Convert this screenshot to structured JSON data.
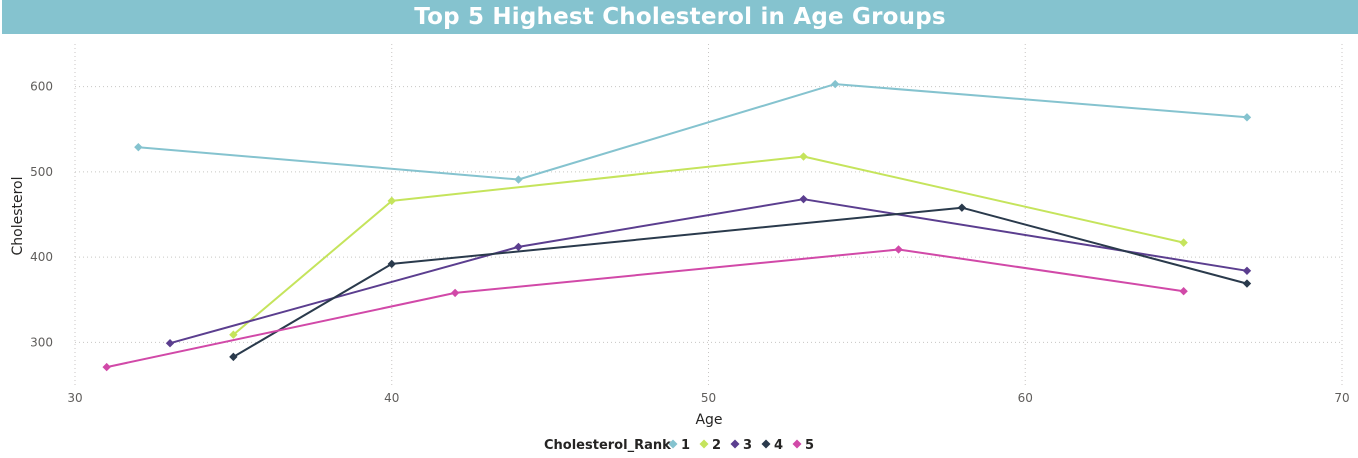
{
  "chart_data": {
    "type": "line",
    "title": "Top 5 Highest Cholesterol in Age Groups",
    "xlabel": "Age",
    "ylabel": "Cholesterol",
    "xlim": [
      30,
      70
    ],
    "ylim": [
      250,
      650
    ],
    "x_ticks": [
      30,
      40,
      50,
      60,
      70
    ],
    "y_ticks": [
      300,
      400,
      500,
      600
    ],
    "grid": true,
    "legend": {
      "title": "Cholesterol_Rank",
      "placement": "bottom-center"
    },
    "series": [
      {
        "name": "1",
        "color": "#85c3cf",
        "points": [
          [
            32,
            529
          ],
          [
            44,
            491
          ],
          [
            54,
            603
          ],
          [
            67,
            564
          ]
        ]
      },
      {
        "name": "2",
        "color": "#c5e45c",
        "points": [
          [
            35,
            309
          ],
          [
            40,
            466
          ],
          [
            53,
            518
          ],
          [
            65,
            417
          ]
        ]
      },
      {
        "name": "3",
        "color": "#5b3e8f",
        "points": [
          [
            33,
            299
          ],
          [
            44,
            412
          ],
          [
            53,
            468
          ],
          [
            67,
            384
          ]
        ]
      },
      {
        "name": "4",
        "color": "#2a3a4c",
        "points": [
          [
            35,
            283
          ],
          [
            40,
            392
          ],
          [
            58,
            458
          ],
          [
            67,
            369
          ]
        ]
      },
      {
        "name": "5",
        "color": "#d149a8",
        "points": [
          [
            31,
            271
          ],
          [
            42,
            358
          ],
          [
            56,
            409
          ],
          [
            65,
            360
          ]
        ]
      }
    ]
  }
}
